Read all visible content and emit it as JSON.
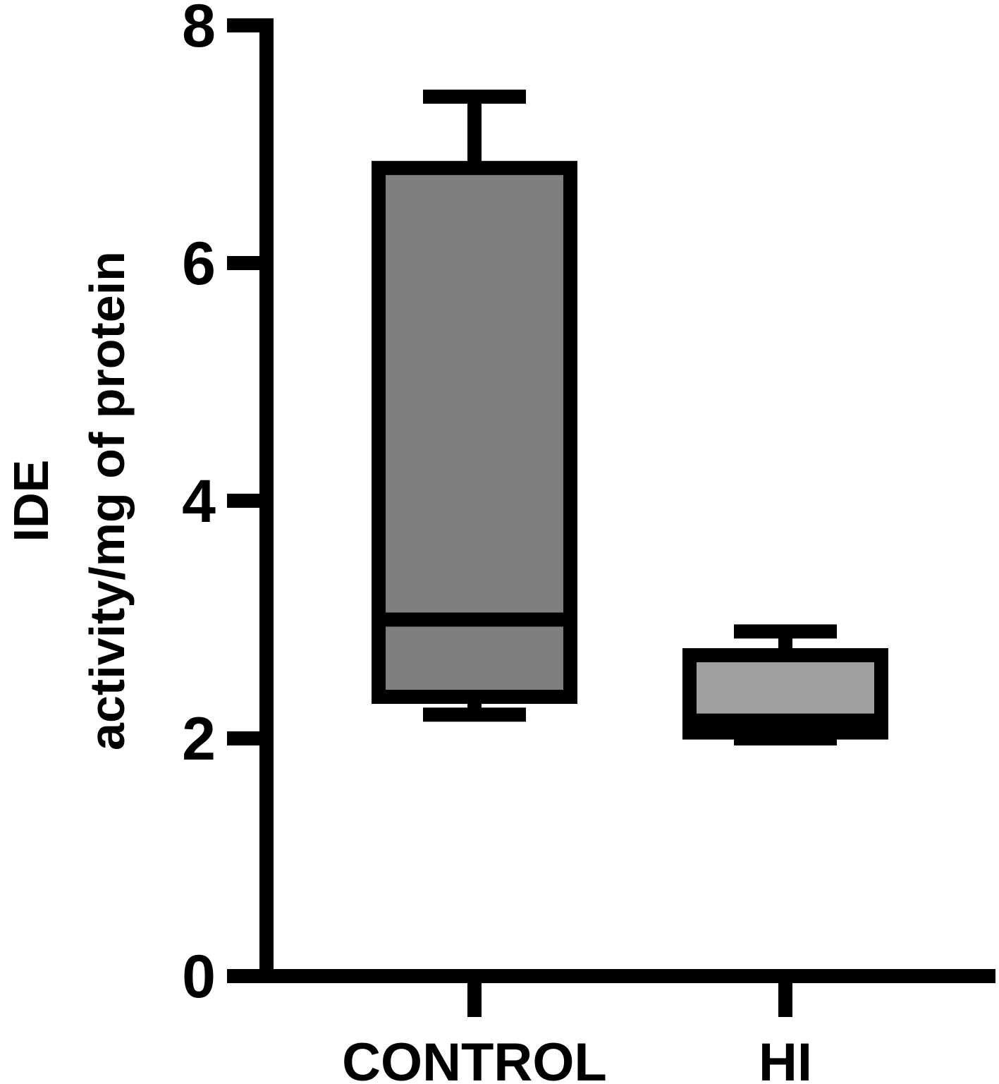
{
  "chart_data": {
    "type": "box",
    "y_axis": {
      "title_lines": [
        "IDE",
        "activity/mg of protein"
      ],
      "ylim": [
        0,
        8
      ],
      "ticks": [
        0,
        2,
        4,
        6,
        8
      ],
      "tick_labels": [
        "0",
        "2",
        "4",
        "6",
        "8"
      ]
    },
    "categories": [
      "CONTROL",
      "HI"
    ],
    "boxes": [
      {
        "category": "CONTROL",
        "min": 2.2,
        "q1": 2.35,
        "median": 3.0,
        "q3": 6.8,
        "max": 7.4,
        "fill": "#7f7f7f"
      },
      {
        "category": "HI",
        "min": 2.0,
        "q1": 2.05,
        "median": 2.15,
        "q3": 2.7,
        "max": 2.9,
        "fill": "#a0a0a0"
      }
    ],
    "grid": false,
    "legend": false
  },
  "colors": {
    "stroke": "#000000",
    "background": "#ffffff"
  }
}
